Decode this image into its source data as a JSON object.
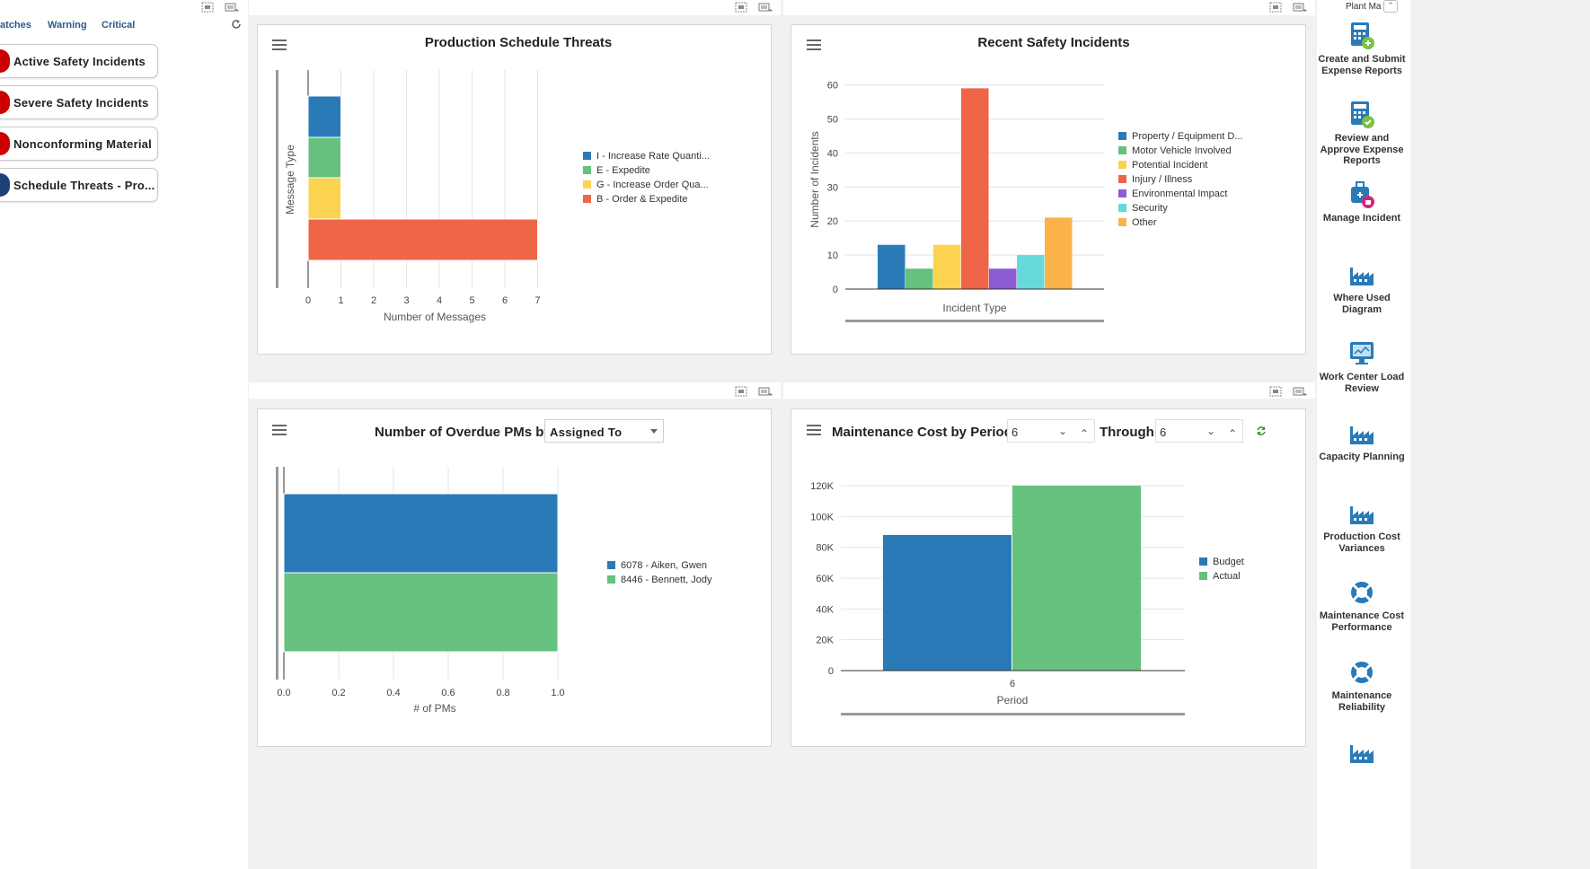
{
  "left": {
    "filters": [
      "atches",
      "Warning",
      "Critical"
    ],
    "tiles": [
      {
        "label": "Active Safety Incidents",
        "color": "#cc0000"
      },
      {
        "label": "Severe Safety Incidents",
        "color": "#cc0000"
      },
      {
        "label": "Nonconforming Material",
        "color": "#cc0000"
      },
      {
        "label": "Schedule Threats - Pro...",
        "color": "#1f3f7a"
      }
    ]
  },
  "rail": {
    "title": "Plant Ma",
    "items": [
      {
        "label": "Create and Submit Expense Reports",
        "icon": "expense-report-icon"
      },
      {
        "label": "Review and Approve Expense Reports",
        "icon": "expense-approve-icon"
      },
      {
        "label": "Manage Incident",
        "icon": "incident-icon"
      },
      {
        "label": "Where Used Diagram",
        "icon": "factory-icon"
      },
      {
        "label": "Work Center Load Review",
        "icon": "monitor-icon"
      },
      {
        "label": "Capacity Planning",
        "icon": "factory-icon"
      },
      {
        "label": "Production Cost Variances",
        "icon": "factory-icon"
      },
      {
        "label": "Maintenance Cost Performance",
        "icon": "lifebuoy-icon"
      },
      {
        "label": "Maintenance Reliability",
        "icon": "lifebuoy-icon"
      }
    ]
  },
  "colors": {
    "blue": "#2a7ab8",
    "green": "#65c17d",
    "yellow": "#fbd350",
    "red": "#ef6547",
    "purple": "#8a5bd1",
    "cyan": "#66d9dc",
    "orange": "#fbb24b"
  },
  "chart_data": [
    {
      "type": "bar",
      "orientation": "horizontal-stacked",
      "title": "Production Schedule Threats",
      "xlabel": "Number of Messages",
      "ylabel": "Message Type",
      "xlim": [
        0,
        7
      ],
      "xticks": [
        "0",
        "1",
        "2",
        "3",
        "4",
        "5",
        "6",
        "7"
      ],
      "series": [
        {
          "name": "I - Increase Rate Quanti...",
          "value": 1
        },
        {
          "name": "E - Expedite",
          "value": 1
        },
        {
          "name": "G - Increase Order Qua...",
          "value": 1
        },
        {
          "name": "B - Order & Expedite",
          "value": 7
        }
      ]
    },
    {
      "type": "bar",
      "title": "Recent Safety Incidents",
      "xlabel": "Incident Type",
      "ylabel": "Number of Incidents",
      "ylim": [
        0,
        60
      ],
      "yticks": [
        "0",
        "10",
        "20",
        "30",
        "40",
        "50",
        "60"
      ],
      "series": [
        {
          "name": "Property / Equipment D...",
          "value": 13
        },
        {
          "name": "Motor Vehicle Involved",
          "value": 6
        },
        {
          "name": "Potential Incident",
          "value": 13
        },
        {
          "name": "Injury / Illness",
          "value": 59
        },
        {
          "name": "Environmental Impact",
          "value": 6
        },
        {
          "name": "Security",
          "value": 10
        },
        {
          "name": "Other",
          "value": 21
        }
      ]
    },
    {
      "type": "bar",
      "orientation": "horizontal",
      "title": "Number of Overdue PMs by",
      "dropdown_value": "Assigned To",
      "xlabel": "# of PMs",
      "xlim": [
        0,
        1
      ],
      "xticks": [
        "0.0",
        "0.2",
        "0.4",
        "0.6",
        "0.8",
        "1.0"
      ],
      "series": [
        {
          "name": "6078 - Aiken, Gwen",
          "value": 1
        },
        {
          "name": "8446 - Bennett, Jody",
          "value": 1
        }
      ]
    },
    {
      "type": "bar",
      "title": "Maintenance Cost by Period",
      "from_value": "6",
      "through_label": "Through",
      "through_value": "6",
      "xlabel": "Period",
      "categories": [
        "6"
      ],
      "ylim": [
        0,
        120000
      ],
      "yticks": [
        "0",
        "20K",
        "40K",
        "60K",
        "80K",
        "100K",
        "120K"
      ],
      "series": [
        {
          "name": "Budget",
          "values": [
            88000
          ]
        },
        {
          "name": "Actual",
          "values": [
            120000
          ]
        }
      ]
    }
  ]
}
